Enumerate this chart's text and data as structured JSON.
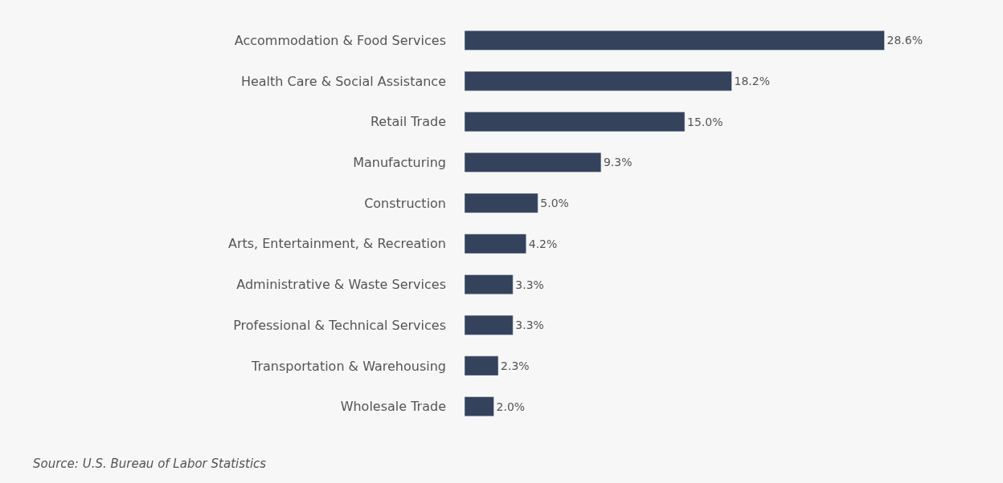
{
  "chart_data": {
    "type": "bar",
    "orientation": "horizontal",
    "categories": [
      "Accommodation & Food Services",
      "Health Care & Social Assistance",
      "Retail Trade",
      "Manufacturing",
      "Construction",
      "Arts, Entertainment, & Recreation",
      "Administrative & Waste Services",
      "Professional & Technical Services",
      "Transportation & Warehousing",
      "Wholesale Trade"
    ],
    "values": [
      28.6,
      18.2,
      15.0,
      9.3,
      5.0,
      4.2,
      3.3,
      3.3,
      2.3,
      2.0
    ],
    "value_labels": [
      "28.6%",
      "18.2%",
      "15.0%",
      "9.3%",
      "5.0%",
      "4.2%",
      "3.3%",
      "3.3%",
      "2.3%",
      "2.0%"
    ],
    "color": "#35425b",
    "annotations": [
      "Source: U.S. Bureau of Labor Statistics"
    ]
  }
}
